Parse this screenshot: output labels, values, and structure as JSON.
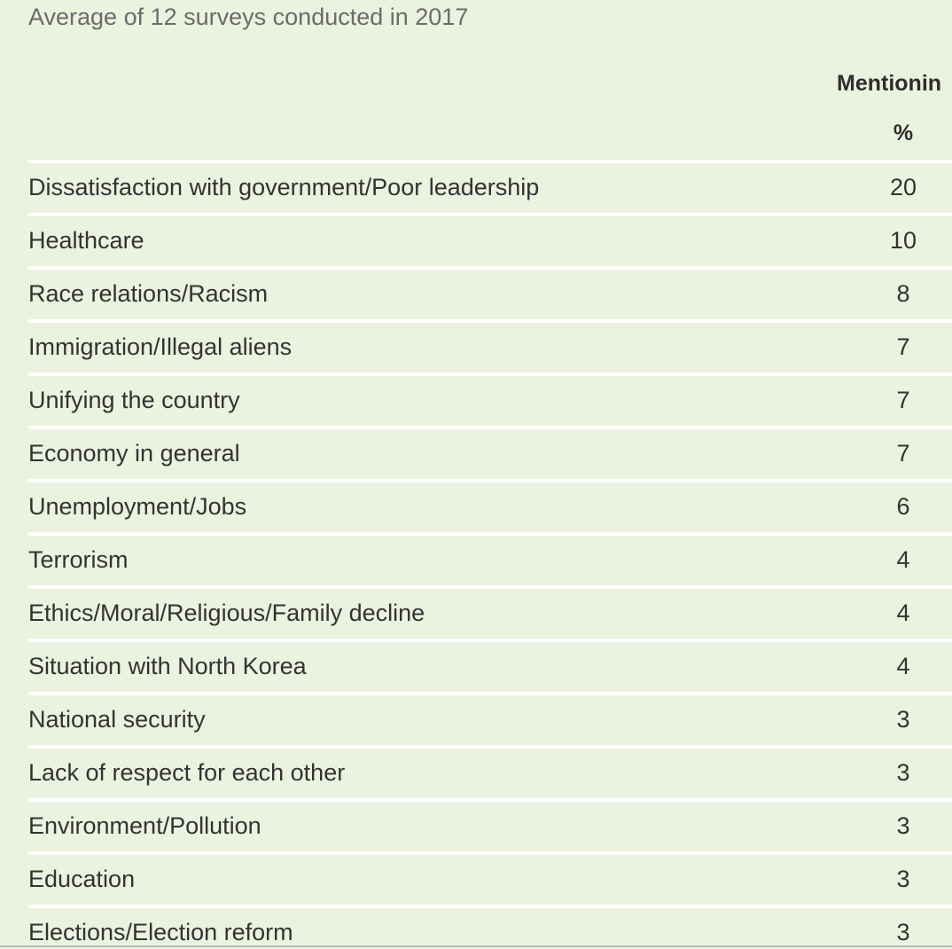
{
  "table": {
    "subtitle": "Average of 12 surveys conducted in 2017",
    "column_header": "Mentionin",
    "column_unit": "%",
    "rows": [
      {
        "label": "Dissatisfaction with government/Poor leadership",
        "value": "20"
      },
      {
        "label": "Healthcare",
        "value": "10"
      },
      {
        "label": "Race relations/Racism",
        "value": "8"
      },
      {
        "label": "Immigration/Illegal aliens",
        "value": "7"
      },
      {
        "label": "Unifying the country",
        "value": "7"
      },
      {
        "label": "Economy in general",
        "value": "7"
      },
      {
        "label": "Unemployment/Jobs",
        "value": "6"
      },
      {
        "label": "Terrorism",
        "value": "4"
      },
      {
        "label": "Ethics/Moral/Religious/Family decline",
        "value": "4"
      },
      {
        "label": "Situation with North Korea",
        "value": "4"
      },
      {
        "label": "National security",
        "value": "3"
      },
      {
        "label": "Lack of respect for each other",
        "value": "3"
      },
      {
        "label": "Environment/Pollution",
        "value": "3"
      },
      {
        "label": "Education",
        "value": "3"
      },
      {
        "label": "Elections/Election reform",
        "value": "3"
      }
    ]
  },
  "colors": {
    "background": "#ebf2df",
    "row_divider": "#ffffff",
    "text": "#333333",
    "subtitle_text": "#6b6b6b"
  }
}
